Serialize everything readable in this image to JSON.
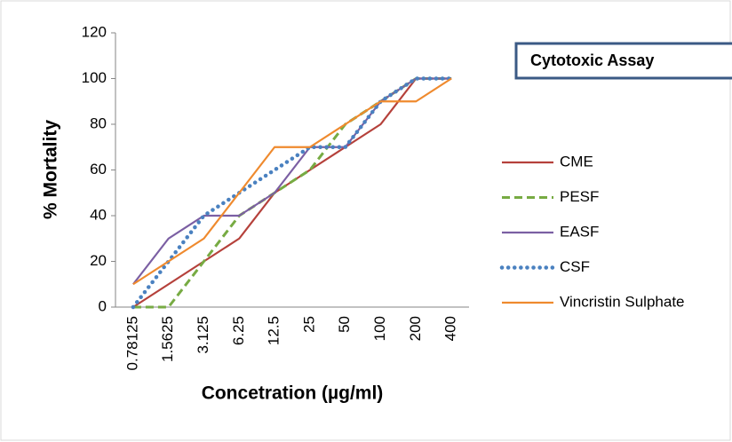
{
  "chart_data": {
    "type": "line",
    "title": "Cytotoxic Assay",
    "x_label": "Concetration (µg/ml)",
    "y_label": "% Mortality",
    "categories": [
      "0.78125",
      "1.5625",
      "3.125",
      "6.25",
      "12.5",
      "25",
      "50",
      "100",
      "200",
      "400"
    ],
    "ylim": [
      0,
      120
    ],
    "yticks": [
      0,
      20,
      40,
      60,
      80,
      100,
      120
    ],
    "grid": false,
    "legend": "right",
    "series": [
      {
        "name": "CME",
        "color": "#b5413b",
        "dash": "solid",
        "values": [
          0,
          10,
          20,
          30,
          50,
          60,
          70,
          80,
          100,
          100
        ]
      },
      {
        "name": "PESF",
        "color": "#77ab43",
        "dash": "dashed",
        "values": [
          0,
          0,
          20,
          40,
          50,
          60,
          80,
          90,
          100,
          100
        ]
      },
      {
        "name": "EASF",
        "color": "#7b5fa3",
        "dash": "solid",
        "values": [
          10,
          30,
          40,
          40,
          50,
          70,
          70,
          90,
          100,
          100
        ]
      },
      {
        "name": "CSF",
        "color": "#4a81c0",
        "dash": "dotted",
        "values": [
          0,
          20,
          40,
          50,
          60,
          70,
          70,
          90,
          100,
          100
        ]
      },
      {
        "name": "Vincristin Sulphate",
        "color": "#ef8a2e",
        "dash": "solid",
        "values": [
          10,
          20,
          30,
          50,
          70,
          70,
          80,
          90,
          90,
          100
        ]
      }
    ]
  }
}
